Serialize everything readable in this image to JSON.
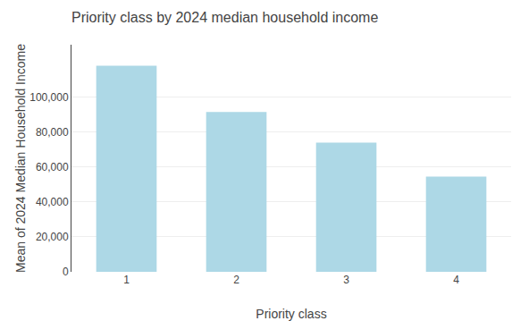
{
  "chart_data": {
    "type": "bar",
    "title": "Priority class by 2024 median household income",
    "xlabel": "Priority class",
    "ylabel": "Mean of 2024 Median Household Income",
    "categories": [
      "1",
      "2",
      "3",
      "4"
    ],
    "values": [
      118000,
      91500,
      74000,
      54500
    ],
    "color": "#add8e6",
    "ylim": [
      0,
      130000
    ],
    "yticks": [
      0,
      {
        "value": 20000,
        "label": "20,000"
      },
      {
        "value": 40000,
        "label": "40,000"
      },
      {
        "value": 60000,
        "label": "60,000"
      },
      {
        "value": 80000,
        "label": "80,000"
      },
      {
        "value": 100000,
        "label": "100,000"
      }
    ],
    "grid": true
  }
}
